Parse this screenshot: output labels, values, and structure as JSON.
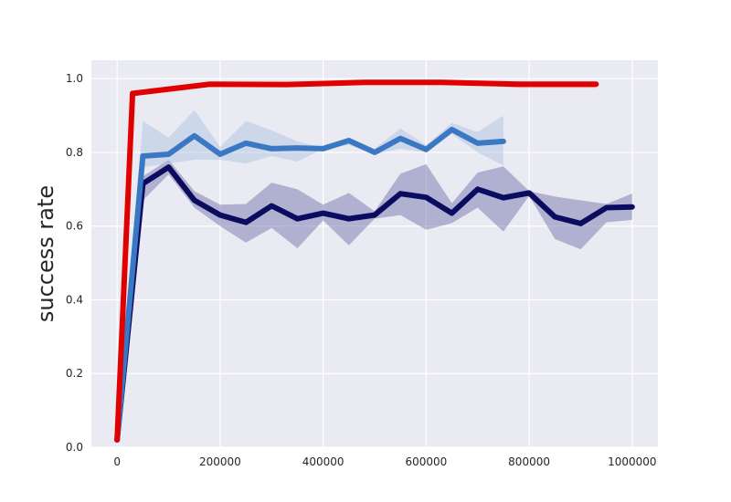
{
  "chart_data": {
    "type": "line",
    "title": "",
    "xlabel": "",
    "ylabel": "success rate",
    "xlim": [
      -50000,
      1050000
    ],
    "ylim": [
      0.0,
      1.05
    ],
    "xticks": [
      0,
      200000,
      400000,
      600000,
      800000,
      1000000
    ],
    "xtick_labels": [
      "0",
      "200000",
      "400000",
      "600000",
      "800000",
      "1000000"
    ],
    "yticks": [
      0.0,
      0.2,
      0.4,
      0.6,
      0.8,
      1.0
    ],
    "ytick_labels": [
      "0.0",
      "0.2",
      "0.4",
      "0.6",
      "0.8",
      "1.0"
    ],
    "grid": true,
    "legend": "none",
    "background_color": "#eaeaf2",
    "series": [
      {
        "color": "#0b0b5f",
        "fill_color": "#6a6aa6",
        "x": [
          0,
          50000,
          100000,
          150000,
          200000,
          250000,
          300000,
          350000,
          400000,
          450000,
          500000,
          550000,
          600000,
          650000,
          700000,
          750000,
          800000,
          850000,
          900000,
          950000,
          1000000
        ],
        "y": [
          0.02,
          0.715,
          0.76,
          0.67,
          0.63,
          0.61,
          0.655,
          0.62,
          0.635,
          0.62,
          0.63,
          0.688,
          0.678,
          0.635,
          0.7,
          0.677,
          0.69,
          0.625,
          0.607,
          0.65,
          0.652
        ],
        "lower": [
          0.02,
          0.67,
          0.74,
          0.65,
          0.6,
          0.555,
          0.595,
          0.54,
          0.615,
          0.548,
          0.62,
          0.63,
          0.59,
          0.608,
          0.65,
          0.585,
          0.682,
          0.565,
          0.537,
          0.61,
          0.617
        ],
        "upper": [
          0.02,
          0.735,
          0.78,
          0.695,
          0.658,
          0.66,
          0.718,
          0.7,
          0.658,
          0.69,
          0.64,
          0.742,
          0.768,
          0.662,
          0.745,
          0.762,
          0.695,
          0.68,
          0.67,
          0.66,
          0.688
        ]
      },
      {
        "color": "#3b78c3",
        "fill_color": "#a9c1e0",
        "x": [
          0,
          50000,
          100000,
          150000,
          200000,
          250000,
          300000,
          350000,
          400000,
          450000,
          500000,
          550000,
          600000,
          650000,
          700000,
          750000
        ],
        "y": [
          0.02,
          0.79,
          0.795,
          0.845,
          0.795,
          0.825,
          0.81,
          0.812,
          0.81,
          0.832,
          0.8,
          0.838,
          0.808,
          0.862,
          0.825,
          0.83
        ],
        "lower": [
          0.02,
          0.76,
          0.77,
          0.78,
          0.78,
          0.77,
          0.79,
          0.775,
          0.81,
          0.82,
          0.795,
          0.81,
          0.8,
          0.85,
          0.8,
          0.765
        ],
        "upper": [
          0.02,
          0.885,
          0.84,
          0.915,
          0.815,
          0.885,
          0.86,
          0.83,
          0.812,
          0.84,
          0.81,
          0.865,
          0.82,
          0.88,
          0.855,
          0.9
        ]
      },
      {
        "color": "#e00000",
        "fill_color": "#f08080",
        "x": [
          0,
          30000,
          180000,
          330000,
          480000,
          630000,
          780000,
          930000
        ],
        "y": [
          0.02,
          0.96,
          0.985,
          0.984,
          0.99,
          0.99,
          0.985,
          0.985
        ],
        "lower": [
          0.02,
          0.96,
          0.985,
          0.984,
          0.99,
          0.99,
          0.975,
          0.975
        ],
        "upper": [
          0.02,
          0.96,
          0.985,
          0.984,
          0.99,
          0.99,
          0.99,
          0.99
        ]
      }
    ]
  }
}
